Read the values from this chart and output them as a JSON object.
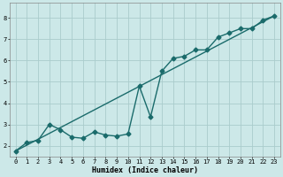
{
  "title": "",
  "xlabel": "Humidex (Indice chaleur)",
  "background_color": "#cce8e8",
  "grid_color": "#aacccc",
  "line_color": "#1a6b6b",
  "xlim": [
    -0.5,
    23.5
  ],
  "ylim": [
    1.5,
    8.7
  ],
  "xticks": [
    0,
    1,
    2,
    3,
    4,
    5,
    6,
    7,
    8,
    9,
    10,
    11,
    12,
    13,
    14,
    15,
    16,
    17,
    18,
    19,
    20,
    21,
    22,
    23
  ],
  "yticks": [
    2,
    3,
    4,
    5,
    6,
    7,
    8
  ],
  "line1_x": [
    0,
    1,
    2,
    3,
    4,
    5,
    6,
    7,
    8,
    9,
    10,
    11,
    12,
    13,
    14,
    15,
    16,
    17,
    18,
    19,
    20,
    21,
    22,
    23
  ],
  "line1_y": [
    1.75,
    2.15,
    2.25,
    3.0,
    2.75,
    2.4,
    2.35,
    2.65,
    2.5,
    2.45,
    2.55,
    4.8,
    3.35,
    5.5,
    6.1,
    6.2,
    6.5,
    6.5,
    7.1,
    7.3,
    7.5,
    7.5,
    7.9,
    8.1
  ],
  "line2_x": [
    0,
    23
  ],
  "line2_y": [
    1.75,
    8.1
  ],
  "marker": "D",
  "markersize": 2.5,
  "linewidth": 1.0
}
